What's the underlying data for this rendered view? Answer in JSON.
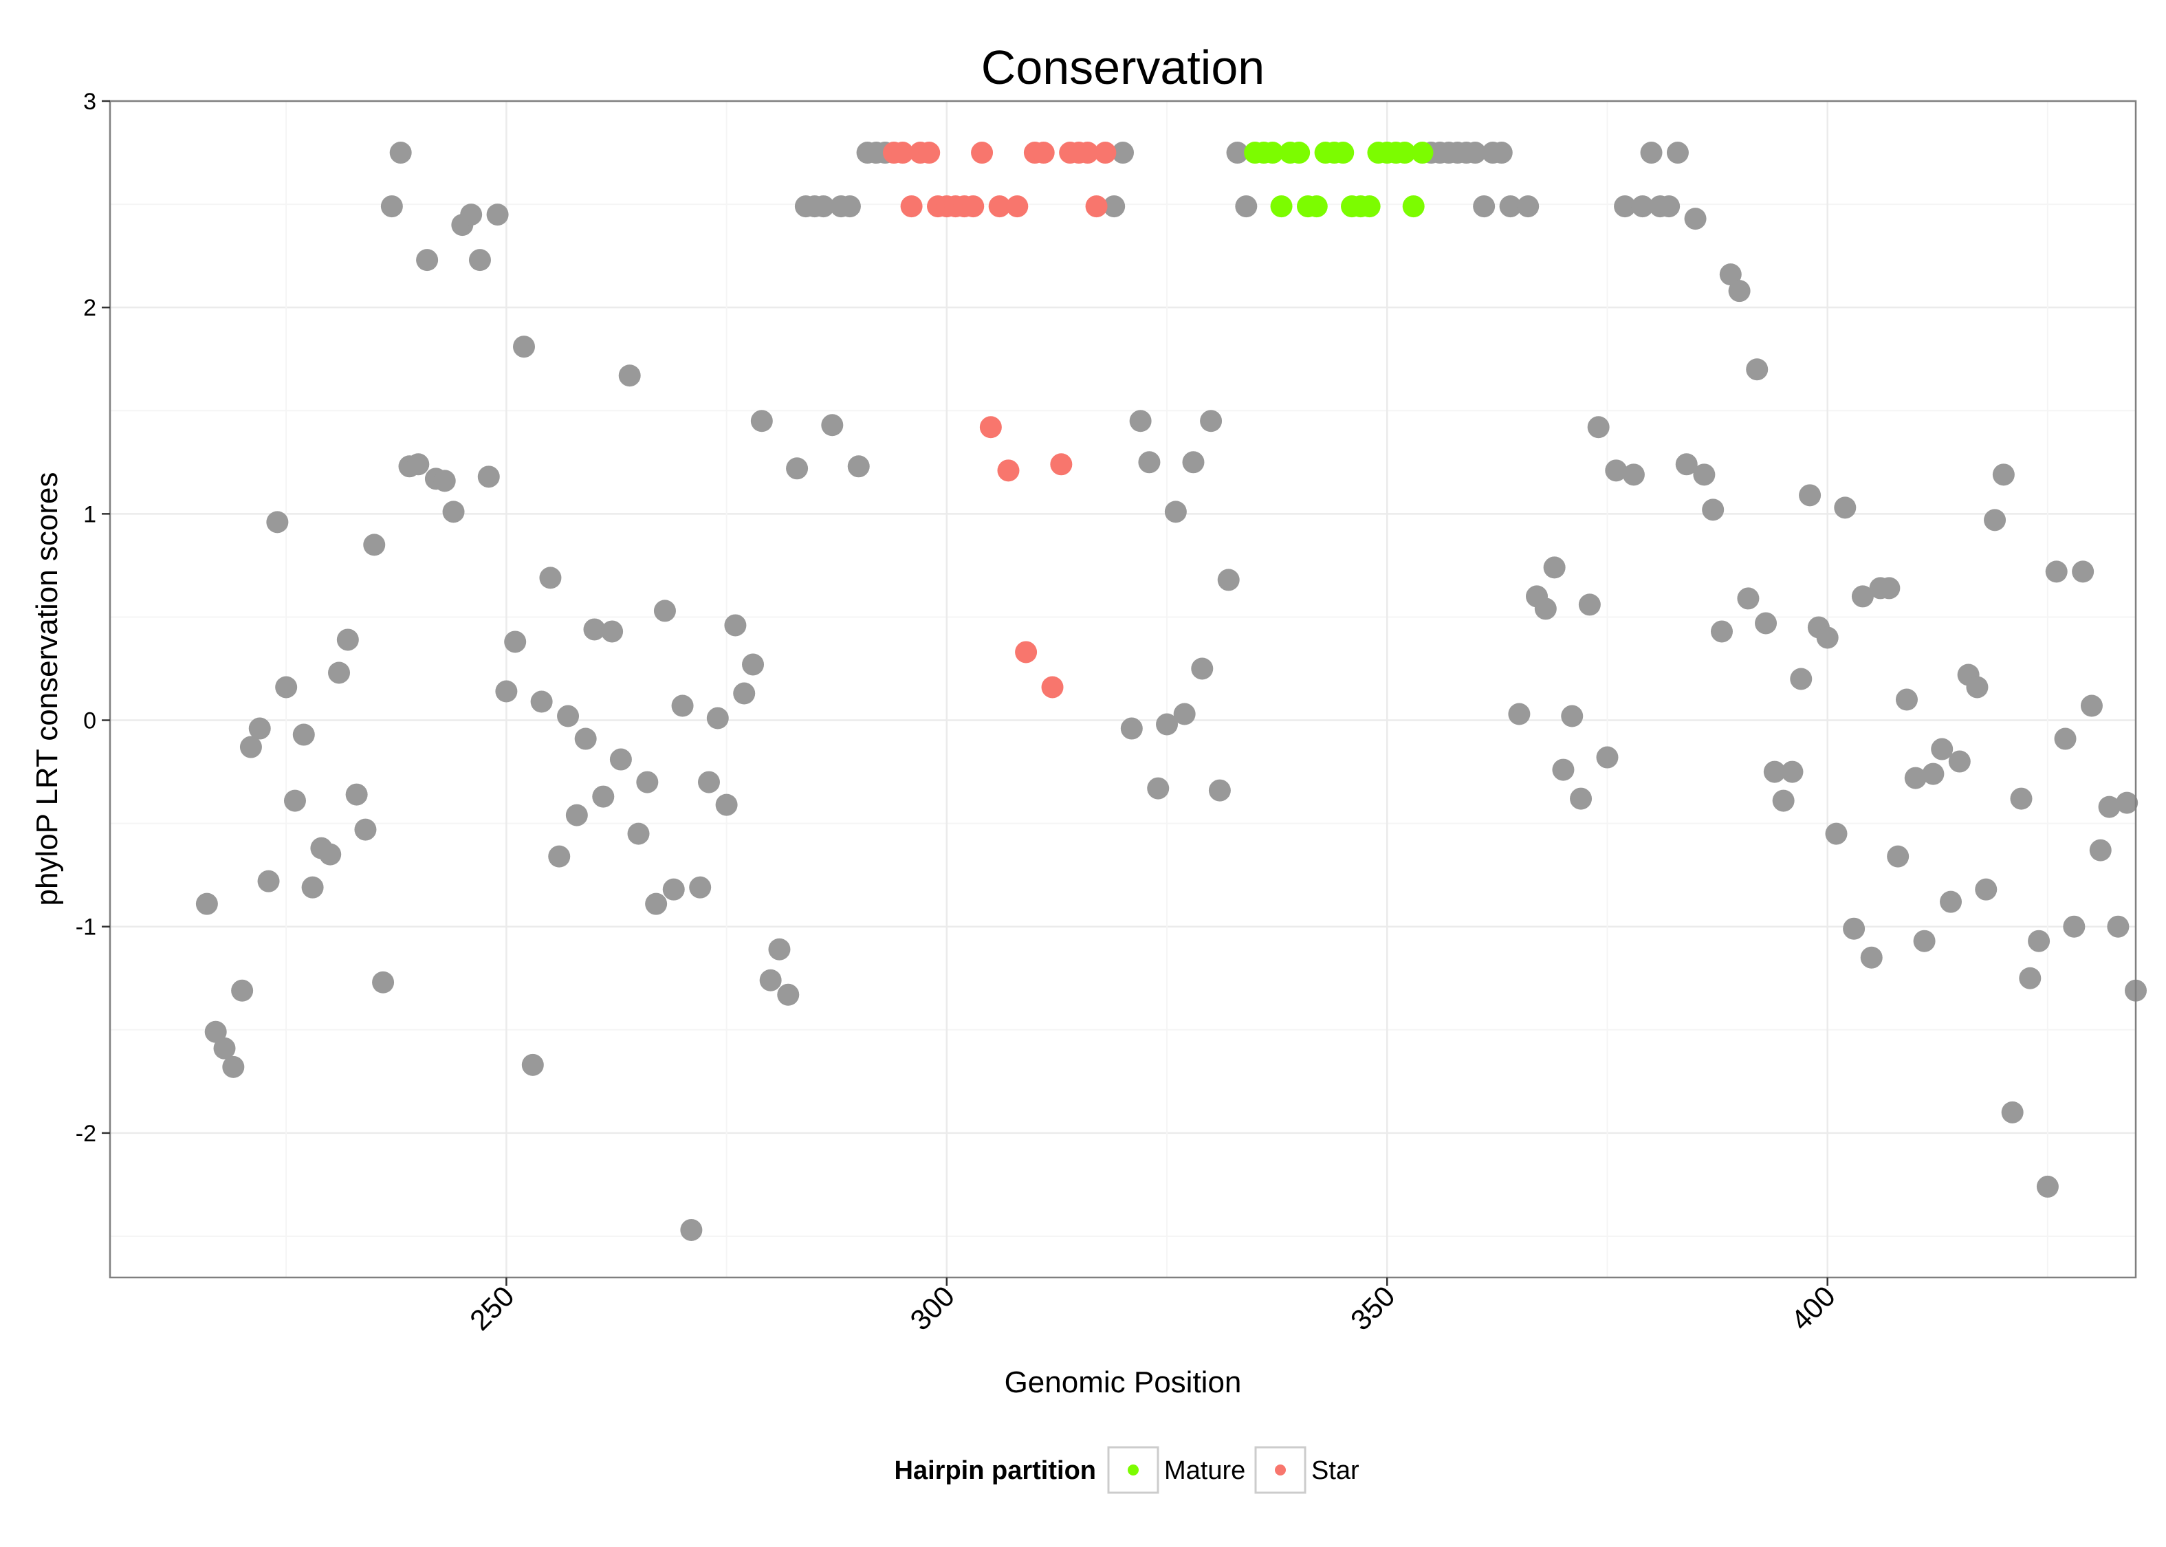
{
  "chart_data": {
    "type": "scatter",
    "title": "Conservation",
    "xlabel": "Genomic Position",
    "ylabel": "phyloP LRT conservation scores",
    "xlim": [
      205,
      435
    ],
    "ylim": [
      -2.7,
      3.0
    ],
    "x_ticks": [
      250,
      300,
      350,
      400
    ],
    "y_ticks": [
      -2,
      -1,
      0,
      1,
      2,
      3
    ],
    "grid": true,
    "legend": {
      "title": "Hairpin partition",
      "position": "bottom",
      "entries": [
        {
          "label": "Mature",
          "color": "#7CFC00"
        },
        {
          "label": "Star",
          "color": "#F8766D"
        }
      ]
    },
    "colors": {
      "Other": "#999999",
      "Mature": "#7CFC00",
      "Star": "#F8766D"
    },
    "series": [
      {
        "group": "Other",
        "points": [
          [
            216,
            -0.89
          ],
          [
            217,
            -1.51
          ],
          [
            218,
            -1.59
          ],
          [
            219,
            -1.68
          ],
          [
            220,
            -1.31
          ],
          [
            221,
            -0.13
          ],
          [
            222,
            -0.04
          ],
          [
            223,
            -0.78
          ],
          [
            224,
            0.96
          ],
          [
            225,
            0.16
          ],
          [
            226,
            -0.39
          ],
          [
            227,
            -0.07
          ],
          [
            228,
            -0.81
          ],
          [
            229,
            -0.62
          ],
          [
            230,
            -0.65
          ],
          [
            231,
            0.23
          ],
          [
            232,
            0.39
          ],
          [
            233,
            -0.36
          ],
          [
            234,
            -0.53
          ],
          [
            235,
            0.85
          ],
          [
            236,
            -1.27
          ],
          [
            237,
            2.49
          ],
          [
            238,
            2.75
          ],
          [
            239,
            1.23
          ],
          [
            240,
            1.24
          ],
          [
            241,
            2.23
          ],
          [
            242,
            1.17
          ],
          [
            243,
            1.16
          ],
          [
            244,
            1.01
          ],
          [
            245,
            2.4
          ],
          [
            246,
            2.45
          ],
          [
            247,
            2.23
          ],
          [
            248,
            1.18
          ],
          [
            249,
            2.45
          ],
          [
            250,
            0.14
          ],
          [
            251,
            0.38
          ],
          [
            252,
            1.81
          ],
          [
            253,
            -1.67
          ],
          [
            254,
            0.09
          ],
          [
            255,
            0.69
          ],
          [
            256,
            -0.66
          ],
          [
            257,
            0.02
          ],
          [
            258,
            -0.46
          ],
          [
            259,
            -0.09
          ],
          [
            260,
            0.44
          ],
          [
            261,
            -0.37
          ],
          [
            262,
            0.43
          ],
          [
            263,
            -0.19
          ],
          [
            264,
            1.67
          ],
          [
            265,
            -0.55
          ],
          [
            266,
            -0.3
          ],
          [
            267,
            -0.89
          ],
          [
            268,
            0.53
          ],
          [
            269,
            -0.82
          ],
          [
            270,
            0.07
          ],
          [
            271,
            -2.47
          ],
          [
            272,
            -0.81
          ],
          [
            273,
            -0.3
          ],
          [
            274,
            0.01
          ],
          [
            275,
            -0.41
          ],
          [
            276,
            0.46
          ],
          [
            277,
            0.13
          ],
          [
            278,
            0.27
          ],
          [
            279,
            1.45
          ],
          [
            280,
            -1.26
          ],
          [
            281,
            -1.11
          ],
          [
            282,
            -1.33
          ],
          [
            283,
            1.22
          ],
          [
            284,
            2.49
          ],
          [
            285,
            2.49
          ],
          [
            286,
            2.49
          ],
          [
            287,
            1.43
          ],
          [
            288,
            2.49
          ],
          [
            289,
            2.49
          ],
          [
            290,
            1.23
          ],
          [
            291,
            2.75
          ],
          [
            292,
            2.75
          ],
          [
            293,
            2.75
          ],
          [
            319,
            2.49
          ],
          [
            320,
            2.75
          ],
          [
            321,
            -0.04
          ],
          [
            322,
            1.45
          ],
          [
            323,
            1.25
          ],
          [
            324,
            -0.33
          ],
          [
            325,
            -0.02
          ],
          [
            326,
            1.01
          ],
          [
            327,
            0.03
          ],
          [
            328,
            1.25
          ],
          [
            329,
            0.25
          ],
          [
            330,
            1.45
          ],
          [
            331,
            -0.34
          ],
          [
            332,
            0.68
          ],
          [
            333,
            2.75
          ],
          [
            334,
            2.49
          ],
          [
            355,
            2.75
          ],
          [
            356,
            2.75
          ],
          [
            357,
            2.75
          ],
          [
            358,
            2.75
          ],
          [
            359,
            2.75
          ],
          [
            360,
            2.75
          ],
          [
            361,
            2.49
          ],
          [
            362,
            2.75
          ],
          [
            363,
            2.75
          ],
          [
            364,
            2.49
          ],
          [
            365,
            0.03
          ],
          [
            366,
            2.49
          ],
          [
            367,
            0.6
          ],
          [
            368,
            0.54
          ],
          [
            369,
            0.74
          ],
          [
            370,
            -0.24
          ],
          [
            371,
            0.02
          ],
          [
            372,
            -0.38
          ],
          [
            373,
            0.56
          ],
          [
            374,
            1.42
          ],
          [
            375,
            -0.18
          ],
          [
            376,
            1.21
          ],
          [
            377,
            2.49
          ],
          [
            378,
            1.19
          ],
          [
            379,
            2.49
          ],
          [
            380,
            2.75
          ],
          [
            381,
            2.49
          ],
          [
            382,
            2.49
          ],
          [
            383,
            2.75
          ],
          [
            384,
            1.24
          ],
          [
            385,
            2.43
          ],
          [
            386,
            1.19
          ],
          [
            387,
            1.02
          ],
          [
            388,
            0.43
          ],
          [
            389,
            2.16
          ],
          [
            390,
            2.08
          ],
          [
            391,
            0.59
          ],
          [
            392,
            1.7
          ],
          [
            393,
            0.47
          ],
          [
            394,
            -0.25
          ],
          [
            395,
            -0.39
          ],
          [
            396,
            -0.25
          ],
          [
            397,
            0.2
          ],
          [
            398,
            1.09
          ],
          [
            399,
            0.45
          ],
          [
            400,
            0.4
          ],
          [
            401,
            -0.55
          ],
          [
            402,
            1.03
          ],
          [
            403,
            -1.01
          ],
          [
            404,
            0.6
          ],
          [
            405,
            -1.15
          ],
          [
            406,
            0.64
          ],
          [
            407,
            0.64
          ],
          [
            408,
            -0.66
          ],
          [
            409,
            0.1
          ],
          [
            410,
            -0.28
          ],
          [
            411,
            -1.07
          ],
          [
            412,
            -0.26
          ],
          [
            413,
            -0.14
          ],
          [
            414,
            -0.88
          ],
          [
            415,
            -0.2
          ],
          [
            416,
            0.22
          ],
          [
            417,
            0.16
          ],
          [
            418,
            -0.82
          ],
          [
            419,
            0.97
          ],
          [
            420,
            1.19
          ],
          [
            421,
            -1.9
          ],
          [
            422,
            -0.38
          ],
          [
            423,
            -1.25
          ],
          [
            424,
            -1.07
          ],
          [
            425,
            -2.26
          ],
          [
            426,
            0.72
          ],
          [
            427,
            -0.09
          ],
          [
            428,
            -1.0
          ],
          [
            429,
            0.72
          ],
          [
            430,
            0.07
          ],
          [
            431,
            -0.63
          ],
          [
            432,
            -0.42
          ],
          [
            433,
            -1.0
          ],
          [
            434,
            -0.4
          ],
          [
            435,
            -1.31
          ]
        ]
      },
      {
        "group": "Star",
        "points": [
          [
            294,
            2.75
          ],
          [
            295,
            2.75
          ],
          [
            296,
            2.49
          ],
          [
            297,
            2.75
          ],
          [
            298,
            2.75
          ],
          [
            299,
            2.49
          ],
          [
            300,
            2.49
          ],
          [
            301,
            2.49
          ],
          [
            302,
            2.49
          ],
          [
            303,
            2.49
          ],
          [
            304,
            2.75
          ],
          [
            305,
            1.42
          ],
          [
            306,
            2.49
          ],
          [
            307,
            1.21
          ],
          [
            308,
            2.49
          ],
          [
            309,
            0.33
          ],
          [
            310,
            2.75
          ],
          [
            311,
            2.75
          ],
          [
            312,
            0.16
          ],
          [
            313,
            1.24
          ],
          [
            314,
            2.75
          ],
          [
            315,
            2.75
          ],
          [
            316,
            2.75
          ],
          [
            317,
            2.49
          ],
          [
            318,
            2.75
          ]
        ]
      },
      {
        "group": "Mature",
        "points": [
          [
            335,
            2.75
          ],
          [
            336,
            2.75
          ],
          [
            337,
            2.75
          ],
          [
            338,
            2.49
          ],
          [
            339,
            2.75
          ],
          [
            340,
            2.75
          ],
          [
            341,
            2.49
          ],
          [
            342,
            2.49
          ],
          [
            343,
            2.75
          ],
          [
            344,
            2.75
          ],
          [
            345,
            2.75
          ],
          [
            346,
            2.49
          ],
          [
            347,
            2.49
          ],
          [
            348,
            2.49
          ],
          [
            349,
            2.75
          ],
          [
            350,
            2.75
          ],
          [
            351,
            2.75
          ],
          [
            352,
            2.75
          ],
          [
            353,
            2.49
          ],
          [
            354,
            2.75
          ]
        ]
      }
    ]
  }
}
